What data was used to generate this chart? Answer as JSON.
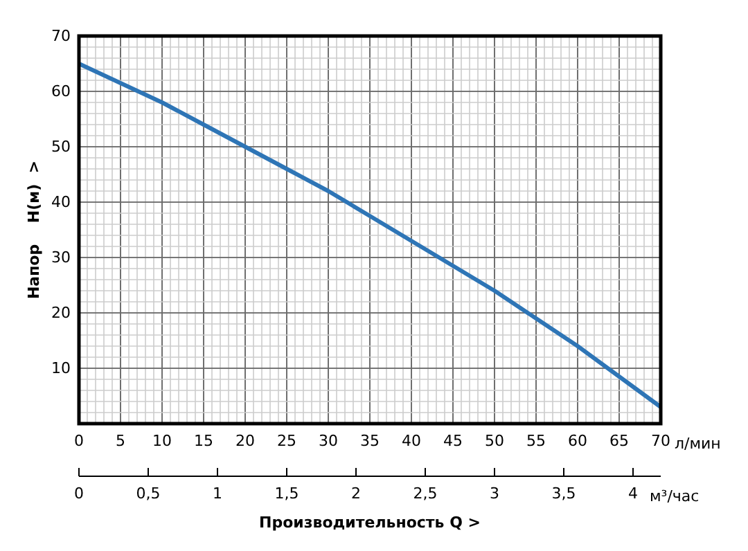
{
  "chart_data": {
    "type": "line",
    "xlabel": "Производительность Q  >",
    "ylabel": "Напор    H(м)  >",
    "x": [
      0,
      5,
      10,
      15,
      20,
      25,
      30,
      35,
      40,
      45,
      50,
      55,
      60,
      65,
      70
    ],
    "series": [
      {
        "color": "#2e75b6",
        "values": [
          65,
          61.5,
          58,
          54,
          50,
          46,
          42,
          37.5,
          33,
          28.5,
          24,
          19,
          14,
          8.5,
          3
        ]
      }
    ],
    "xlim": [
      0,
      70
    ],
    "xticks": [
      0,
      5,
      10,
      15,
      20,
      25,
      30,
      35,
      40,
      45,
      50,
      55,
      60,
      65,
      70
    ],
    "ylim": [
      0,
      70
    ],
    "yticks": [
      10,
      20,
      30,
      40,
      50,
      60,
      70
    ],
    "x2lim": [
      0,
      4.2
    ],
    "x2ticks": [
      0,
      {
        "value": 0.5,
        "label": "0,5"
      },
      1,
      {
        "value": 1.5,
        "label": "1,5"
      },
      2,
      {
        "value": 2.5,
        "label": "2,5"
      },
      3,
      {
        "value": 3.5,
        "label": "3,5"
      },
      4
    ],
    "annotations": [
      "л/мин",
      "м³/час"
    ],
    "grid": true,
    "marker": "none",
    "line_style": "solid"
  }
}
